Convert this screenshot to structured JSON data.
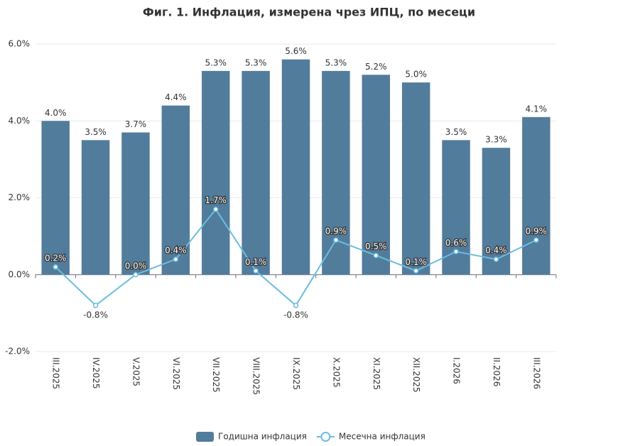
{
  "chart_data": {
    "type": "bar_line",
    "title": "Фиг. 1. Инфлация, измерена чрез ИПЦ, по месеци",
    "categories": [
      "III.2025",
      "IV.2025",
      "V.2025",
      "VI.2025",
      "VII.2025",
      "VIII.2025",
      "IX.2025",
      "X.2025",
      "XI.2025",
      "XII.2025",
      "I.2026",
      "II.2026",
      "III.2026"
    ],
    "series": [
      {
        "name": "Годишна инфлация",
        "type": "bar",
        "color": "#527c9c",
        "values": [
          4.0,
          3.5,
          3.7,
          4.4,
          5.3,
          5.3,
          5.6,
          5.3,
          5.2,
          5.0,
          3.5,
          3.3,
          4.1
        ],
        "value_labels": [
          "4.0%",
          "3.5%",
          "3.7%",
          "4.4%",
          "5.3%",
          "5.3%",
          "5.6%",
          "5.3%",
          "5.2%",
          "5.0%",
          "3.5%",
          "3.3%",
          "4.1%"
        ]
      },
      {
        "name": "Месечна инфлация",
        "type": "line",
        "color": "#6bbde0",
        "values": [
          0.2,
          -0.8,
          0.0,
          0.4,
          1.7,
          0.1,
          -0.8,
          0.9,
          0.5,
          0.1,
          0.6,
          0.4,
          0.9
        ],
        "value_labels": [
          "0.2%",
          "-0.8%",
          "0.0%",
          "0.4%",
          "1.7%",
          "0.1%",
          "-0.8%",
          "0.9%",
          "0.5%",
          "0.1%",
          "0.6%",
          "0.4%",
          "0.9%"
        ]
      }
    ],
    "ylim": [
      -2,
      6
    ],
    "yticks": [
      {
        "value": -2,
        "label": "-2.0%"
      },
      {
        "value": 0,
        "label": "0.0%"
      },
      {
        "value": 2,
        "label": "2.0%"
      },
      {
        "value": 4,
        "label": "4.0%"
      },
      {
        "value": 6,
        "label": "6.0%"
      }
    ],
    "grid": true,
    "legend": "bottom"
  }
}
